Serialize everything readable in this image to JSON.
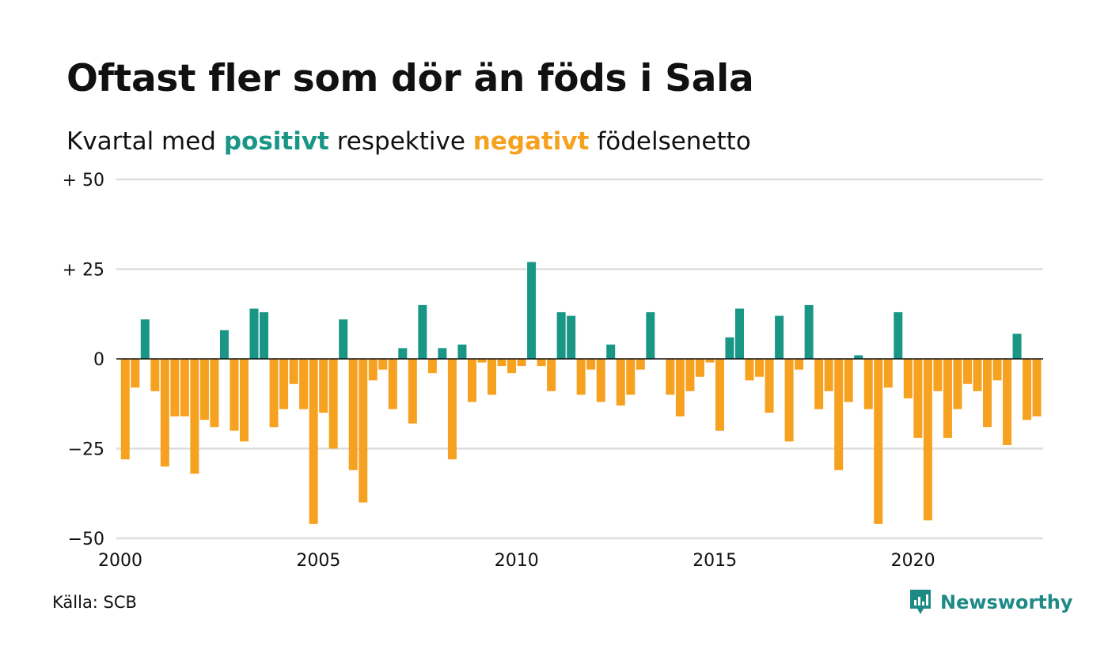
{
  "title": "Oftast fler som dör än föds i Sala",
  "subtitle": {
    "prefix": "Kvartal med ",
    "positive": "positivt",
    "middle": " respektive ",
    "negative": "negativt",
    "suffix": " födelsenetto"
  },
  "source": "Källa: SCB",
  "brand": {
    "name": "Newsworthy",
    "icon": "newsworthy-logo-icon"
  },
  "colors": {
    "positive": "#1a9687",
    "negative": "#f6a11f",
    "grid": "#dddddd",
    "zero_line": "#111111"
  },
  "chart_data": {
    "type": "bar",
    "x_start": "2000 Q1",
    "x_end": "2023 Q1",
    "ylim": [
      -50,
      50
    ],
    "yticks": [
      50,
      25,
      0,
      -25,
      -50
    ],
    "ytick_labels": [
      "+ 50",
      "+ 25",
      "0",
      "−25",
      "−50"
    ],
    "xticks": [
      2000,
      2005,
      2010,
      2015,
      2020
    ],
    "xtick_labels": [
      "2000",
      "2005",
      "2010",
      "2015",
      "2020"
    ],
    "grid": true,
    "values": [
      -28,
      -8,
      11,
      -9,
      -30,
      -16,
      -16,
      -32,
      -17,
      -19,
      8,
      -20,
      -23,
      14,
      13,
      -19,
      -14,
      -7,
      -14,
      -46,
      -15,
      -25,
      11,
      -31,
      -40,
      -6,
      -3,
      -14,
      3,
      -18,
      15,
      -4,
      3,
      -28,
      4,
      -12,
      -1,
      -10,
      -2,
      -4,
      -2,
      27,
      -2,
      -9,
      13,
      12,
      -10,
      -3,
      -12,
      4,
      -13,
      -10,
      -3,
      13,
      0,
      -10,
      -16,
      -9,
      -5,
      -1,
      -20,
      6,
      14,
      -6,
      -5,
      -15,
      12,
      -23,
      -3,
      15,
      -14,
      -9,
      -31,
      -12,
      1,
      -14,
      -46,
      -8,
      13,
      -11,
      -22,
      -45,
      -9,
      -22,
      -14,
      -7,
      -9,
      -19,
      -6,
      -24,
      7,
      -17,
      -16
    ]
  }
}
